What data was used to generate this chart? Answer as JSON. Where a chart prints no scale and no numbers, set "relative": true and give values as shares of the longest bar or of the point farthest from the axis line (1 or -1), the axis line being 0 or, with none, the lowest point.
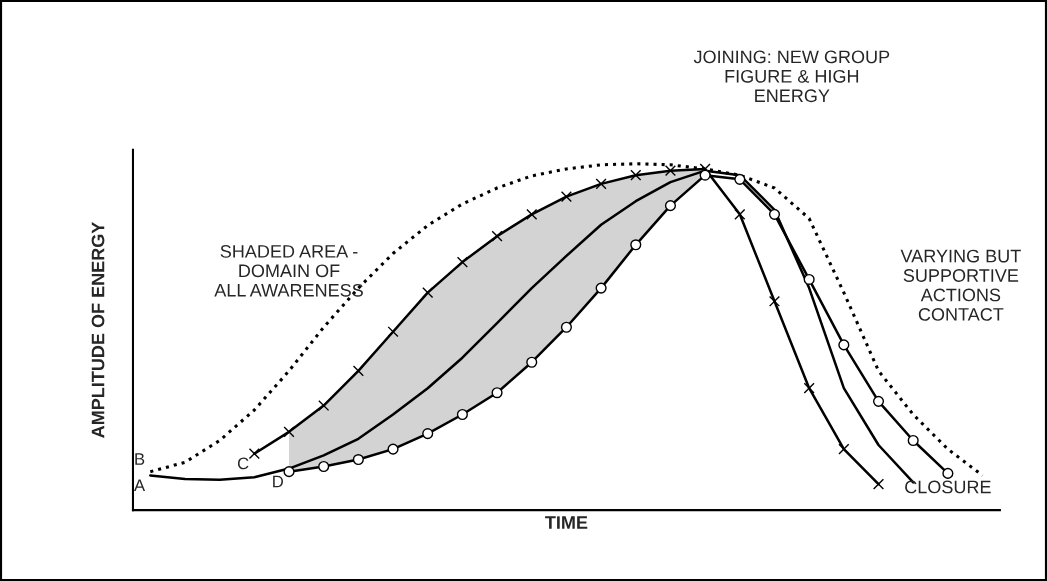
{
  "chart_data": {
    "type": "line",
    "relative": true,
    "xlabel": "TIME",
    "ylabel": "AMPLITUDE OF ENERGY",
    "categories": [
      null,
      null,
      null,
      null,
      null,
      null,
      null,
      null,
      null,
      null,
      null,
      null,
      null,
      null,
      null,
      null,
      null,
      null,
      null,
      null,
      null,
      null,
      null,
      null,
      null
    ],
    "series": [
      {
        "name": "A",
        "color": "#000000",
        "line_style": "solid",
        "marker": "none",
        "values": [
          0.1,
          0.09,
          0.088,
          0.095,
          0.12,
          0.158,
          0.206,
          0.276,
          0.352,
          0.44,
          0.54,
          0.641,
          0.734,
          0.824,
          0.892,
          0.947,
          0.98,
          0.967,
          0.867,
          0.641,
          0.352,
          0.188,
          0.08,
          null,
          null
        ],
        "lower": [
          null,
          null,
          null,
          null,
          0.111,
          0.126,
          0.146,
          0.176,
          0.221,
          0.276,
          0.339,
          0.427,
          0.528,
          0.641,
          0.766,
          0.879,
          0.967,
          null,
          null,
          null,
          null,
          null,
          null,
          null,
          null
        ],
        "upper": [
          null,
          null,
          null,
          null,
          0.226,
          0.302,
          0.402,
          0.515,
          0.628,
          0.716,
          0.791,
          0.854,
          0.905,
          0.942,
          0.967,
          0.98,
          0.985,
          null,
          null,
          null,
          null,
          null,
          null,
          null,
          null
        ]
      },
      {
        "name": "B",
        "color": "#000000",
        "line_style": "dotted",
        "marker": "none",
        "values": [
          0.111,
          0.138,
          0.201,
          0.289,
          0.402,
          0.528,
          0.641,
          0.741,
          0.822,
          0.884,
          0.93,
          0.965,
          0.985,
          0.997,
          1,
          0.997,
          0.985,
          0.967,
          0.93,
          0.842,
          0.628,
          0.402,
          0.276,
          0.176,
          0.1
        ]
      },
      {
        "name": "C",
        "color": "#000000",
        "line_style": "solid",
        "marker": "cross",
        "values": [
          null,
          null,
          null,
          0.163,
          0.226,
          0.302,
          0.402,
          0.515,
          0.628,
          0.716,
          0.791,
          0.854,
          0.905,
          0.942,
          0.967,
          0.98,
          0.985,
          0.854,
          0.603,
          0.352,
          0.176,
          0.075,
          null,
          null,
          null
        ]
      },
      {
        "name": "D",
        "color": "#000000",
        "line_style": "solid",
        "marker": "circle",
        "values": [
          null,
          null,
          null,
          null,
          0.111,
          0.126,
          0.146,
          0.176,
          0.221,
          0.276,
          0.339,
          0.427,
          0.528,
          0.641,
          0.766,
          0.879,
          0.967,
          0.955,
          0.854,
          0.666,
          0.477,
          0.314,
          0.201,
          0.106,
          null
        ]
      }
    ],
    "annotations": [
      "JOINING: NEW GROUP\nFIGURE & HIGH\nENERGY",
      "SHADED AREA -\nDOMAIN OF\nALL AWARENESS",
      "VARYING BUT\nSUPPORTIVE\nACTIONS\nCONTACT",
      "CLOSURE"
    ]
  }
}
